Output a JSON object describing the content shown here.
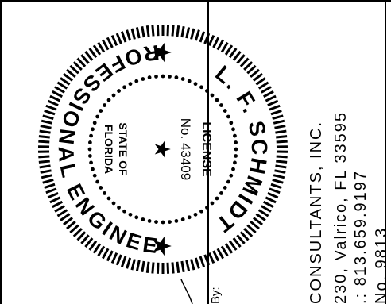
{
  "seal": {
    "outer_text_top": "L. F. SCHMIDT",
    "outer_text_bottom": "PROFESSIONAL ENGINEER",
    "inner_top": "LICENSE",
    "license_no": "No. 43409",
    "inner_bottom_1": "STATE OF",
    "inner_bottom_2": "FLORIDA",
    "star_glyph": "★"
  },
  "title_block": {
    "firm": "CONSULTANTS, INC.",
    "address": "230, Valrico, FL 33595",
    "phone": ".: 813.659.9197",
    "license": "No. 9813",
    "by_label": "By:"
  },
  "colors": {
    "ink": "#000000",
    "paper": "#ffffff"
  }
}
